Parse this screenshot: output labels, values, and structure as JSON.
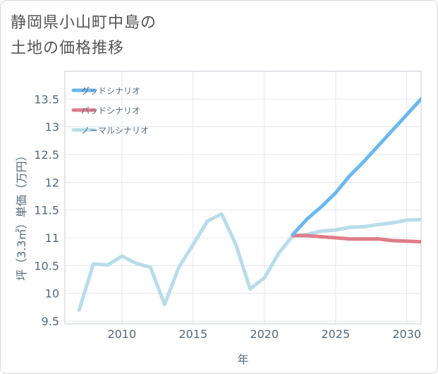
{
  "chart_data": {
    "type": "line",
    "title": [
      "静岡県小山町中島の",
      "土地の価格推移"
    ],
    "xlabel": "年",
    "ylabel": "坪（3.3㎡）単価（万円）",
    "xlim": [
      2006,
      2031
    ],
    "ylim": [
      9.45,
      14.0
    ],
    "x_ticks": [
      2010,
      2015,
      2020,
      2025,
      2030
    ],
    "x_tick_labels": [
      "2010",
      "2015",
      "2020",
      "2025",
      "2030"
    ],
    "y_ticks": [
      9.5,
      10,
      10.5,
      11,
      11.5,
      12,
      12.5,
      13,
      13.5
    ],
    "y_tick_labels": [
      "9.5",
      "10",
      "10.5",
      "11",
      "11.5",
      "12",
      "12.5",
      "13",
      "13.5"
    ],
    "grid": true,
    "legend_position": "top-left",
    "series": [
      {
        "name": "グッドシナリオ",
        "color": "#6cb8ee",
        "x": [
          2022,
          2023,
          2024,
          2025,
          2026,
          2027,
          2028,
          2029,
          2030,
          2031
        ],
        "y": [
          11.06,
          11.34,
          11.56,
          11.81,
          12.12,
          12.38,
          12.66,
          12.94,
          13.22,
          13.5
        ]
      },
      {
        "name": "バッドシナリオ",
        "color": "#de7d8a",
        "x": [
          2022,
          2023,
          2024,
          2025,
          2026,
          2027,
          2028,
          2029,
          2030,
          2031
        ],
        "y": [
          11.04,
          11.04,
          11.02,
          11.0,
          10.98,
          10.98,
          10.98,
          10.95,
          10.94,
          10.93
        ]
      },
      {
        "name": "ノーマルシナリオ",
        "color": "#b8dcea",
        "x": [
          2007,
          2008,
          2009,
          2010,
          2011,
          2012,
          2013,
          2014,
          2015,
          2016,
          2017,
          2018,
          2019,
          2020,
          2021,
          2022,
          2023,
          2024,
          2025,
          2026,
          2027,
          2028,
          2029,
          2030,
          2031
        ],
        "y": [
          9.7,
          10.53,
          10.51,
          10.67,
          10.54,
          10.47,
          9.8,
          10.47,
          10.88,
          11.3,
          11.43,
          10.88,
          10.08,
          10.28,
          10.72,
          11.04,
          11.06,
          11.12,
          11.14,
          11.19,
          11.2,
          11.24,
          11.27,
          11.32,
          11.33
        ]
      }
    ]
  }
}
